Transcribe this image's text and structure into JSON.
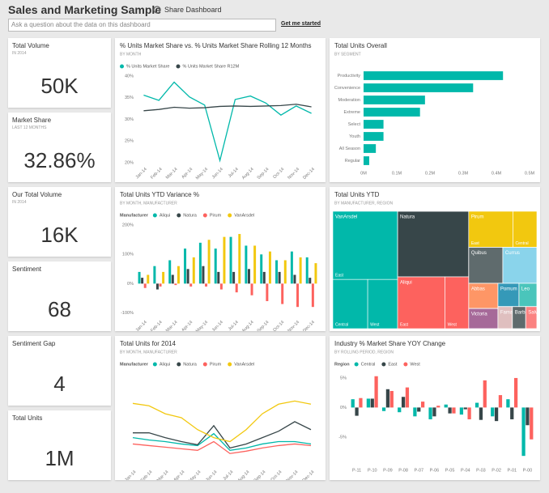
{
  "header": {
    "title": "Sales and Marketing Sample",
    "share": "Share Dashboard",
    "question_placeholder": "Ask a question about the data on this dashboard",
    "get_started": "Get me started"
  },
  "cards": [
    {
      "title": "Total Volume",
      "subtitle": "IN 2014",
      "value": "50K"
    },
    {
      "title": "Market Share",
      "subtitle": "LAST 12 MONTHS",
      "value": "32.86%"
    },
    {
      "title": "Our Total Volume",
      "subtitle": "IN 2014",
      "value": "16K"
    },
    {
      "title": "Sentiment",
      "value": "68"
    },
    {
      "title": "Sentiment Gap",
      "value": "4"
    },
    {
      "title": "Total Units",
      "value": "1M"
    }
  ],
  "chart_data": [
    {
      "type": "line",
      "title": "% Units Market Share vs. % Units Market Share Rolling 12 Months",
      "subtitle": "BY MONTH",
      "categories": [
        "Jan-14",
        "Feb-14",
        "Mar-14",
        "Apr-14",
        "May-14",
        "Jun-14",
        "Jul-14",
        "Aug-14",
        "Sep-14",
        "Oct-14",
        "Nov-14",
        "Dec-14"
      ],
      "series": [
        {
          "name": "% Units Market Share",
          "color": "#01b8aa",
          "values": [
            35.6,
            34.4,
            38.6,
            35.2,
            33.3,
            20.5,
            34.6,
            35.4,
            33.8,
            31.0,
            33.1,
            31.4
          ]
        },
        {
          "name": "% Units Market Share R12M",
          "color": "#374649",
          "values": [
            32.0,
            32.3,
            32.8,
            32.6,
            32.7,
            33.0,
            33.1,
            33.0,
            33.1,
            33.2,
            33.5,
            32.9
          ]
        }
      ],
      "ylim": [
        20,
        40
      ],
      "yticks": [
        {
          "value": 20,
          "label": "20%"
        },
        {
          "value": 25,
          "label": "25%"
        },
        {
          "value": 30,
          "label": "30%"
        },
        {
          "value": 35,
          "label": "35%"
        },
        {
          "value": 40,
          "label": "40%"
        }
      ],
      "grid": false
    },
    {
      "type": "bar",
      "horizontal": true,
      "title": "Total Units Overall",
      "subtitle": "BY SEGMENT",
      "categories": [
        "Productivity",
        "Convenience",
        "Moderation",
        "Extreme",
        "Select",
        "Youth",
        "All Season",
        "Regular"
      ],
      "values": [
        420000,
        330000,
        185000,
        170000,
        60000,
        60000,
        37000,
        17000
      ],
      "color": "#01b8aa",
      "xlim": [
        0,
        500000
      ],
      "xticks": [
        {
          "value": 0,
          "label": "0M"
        },
        {
          "value": 100000,
          "label": "0.1M"
        },
        {
          "value": 200000,
          "label": "0.2M"
        },
        {
          "value": 300000,
          "label": "0.3M"
        },
        {
          "value": 400000,
          "label": "0.4M"
        },
        {
          "value": 500000,
          "label": "0.5M"
        }
      ],
      "grid": false
    },
    {
      "type": "bar",
      "title": "Total Units YTD Variance %",
      "subtitle": "BY MONTH, MANUFACTURER",
      "legend_title": "Manufacturer",
      "categories": [
        "Jan-14",
        "Feb-14",
        "Mar-14",
        "Apr-14",
        "May-14",
        "Jun-14",
        "Jul-14",
        "Aug-14",
        "Sep-14",
        "Oct-14",
        "Nov-14",
        "Dec-14"
      ],
      "series": [
        {
          "name": "Aliqui",
          "color": "#01b8aa",
          "values": [
            40,
            60,
            80,
            120,
            140,
            120,
            160,
            130,
            100,
            80,
            110,
            90
          ]
        },
        {
          "name": "Natura",
          "color": "#374649",
          "values": [
            20,
            -20,
            30,
            50,
            60,
            40,
            40,
            50,
            40,
            40,
            30,
            20
          ]
        },
        {
          "name": "Pirum",
          "color": "#fd625e",
          "values": [
            -15,
            -10,
            -5,
            -10,
            -10,
            -20,
            -30,
            -40,
            -60,
            -70,
            -80,
            -80
          ]
        },
        {
          "name": "VanArsdel",
          "color": "#f2c80f",
          "values": [
            30,
            40,
            60,
            90,
            150,
            160,
            170,
            130,
            110,
            80,
            90,
            70
          ]
        }
      ],
      "ylim": [
        -110,
        220
      ],
      "yticks": [
        {
          "value": -100,
          "label": "-100%"
        },
        {
          "value": 0,
          "label": "0%"
        },
        {
          "value": 100,
          "label": "100%"
        },
        {
          "value": 200,
          "label": "200%"
        }
      ],
      "grid": false
    },
    {
      "type": "treemap",
      "title": "Total Units YTD",
      "subtitle": "BY MANUFACTURER, REGION",
      "items": [
        {
          "name": "VanArsdel",
          "color": "#01b8aa",
          "regions": [
            {
              "name": "East",
              "value": 180000
            },
            {
              "name": "Central",
              "value": 70000
            },
            {
              "name": "West",
              "value": 60000
            }
          ]
        },
        {
          "name": "Natura",
          "color": "#374649",
          "value": 190000
        },
        {
          "name": "Aliqui",
          "color": "#fd625e",
          "regions": [
            {
              "name": "East",
              "value": 100000
            },
            {
              "name": "West",
              "value": 50000
            }
          ]
        },
        {
          "name": "Pirum",
          "color": "#f2c80f",
          "regions": [
            {
              "name": "East",
              "value": 65000
            },
            {
              "name": "Central",
              "value": 35000
            }
          ]
        },
        {
          "name": "Quibus",
          "color": "#5f6b6d",
          "value": 50000
        },
        {
          "name": "Currus",
          "color": "#8ad4eb",
          "value": 50000
        },
        {
          "name": "Abbas",
          "color": "#fe9666",
          "value": 30000
        },
        {
          "name": "Victoria",
          "color": "#a66999",
          "value": 24000
        },
        {
          "name": "Pomum",
          "color": "#3599b8",
          "value": 20000
        },
        {
          "name": "Leo",
          "color": "#4ac5bb",
          "value": 17000
        },
        {
          "name": "Fama",
          "color": "#dfbfbf",
          "value": 13000
        },
        {
          "name": "Barba",
          "color": "#5f6b6d",
          "value": 12000
        },
        {
          "name": "Salvus",
          "color": "#fb8281",
          "value": 10000
        }
      ]
    },
    {
      "type": "line",
      "title": "Total Units for 2014",
      "subtitle": "BY MONTH, MANUFACTURER",
      "legend_title": "Manufacturer",
      "categories": [
        "Jan-14",
        "Feb-14",
        "Mar-14",
        "Apr-14",
        "May-14",
        "Jun-14",
        "Jul-14",
        "Aug-14",
        "Sep-14",
        "Oct-14",
        "Nov-14",
        "Dec-14"
      ],
      "series": [
        {
          "name": "Aliqui",
          "color": "#01b8aa",
          "values": [
            35,
            32,
            30,
            27,
            25,
            40,
            19,
            22,
            27,
            30,
            30,
            27
          ]
        },
        {
          "name": "Natura",
          "color": "#374649",
          "values": [
            41,
            41,
            35,
            30,
            26,
            50,
            22,
            27,
            35,
            43,
            55,
            45
          ]
        },
        {
          "name": "Pirum",
          "color": "#fd625e",
          "values": [
            27,
            25,
            23,
            21,
            19,
            30,
            15,
            18,
            22,
            25,
            27,
            25
          ]
        },
        {
          "name": "VanArsdel",
          "color": "#f2c80f",
          "values": [
            78,
            75,
            65,
            60,
            45,
            35,
            30,
            45,
            65,
            77,
            81,
            77
          ]
        }
      ],
      "ylim": [
        0,
        120
      ],
      "grid": false
    },
    {
      "type": "bar",
      "title": "Industry % Market Share YOY Change",
      "subtitle": "BY ROLLING PERIOD, REGION",
      "legend_title": "Region",
      "categories": [
        "P-11",
        "P-10",
        "P-09",
        "P-08",
        "P-07",
        "P-06",
        "P-05",
        "P-04",
        "P-03",
        "P-02",
        "P-01",
        "P-00"
      ],
      "series": [
        {
          "name": "Central",
          "color": "#01b8aa",
          "values": [
            1.4,
            1.5,
            -0.6,
            -0.8,
            -1.5,
            -2.0,
            0.5,
            -1.2,
            0.8,
            -1.5,
            1.4,
            -8.2
          ]
        },
        {
          "name": "East",
          "color": "#374649",
          "values": [
            -1.4,
            1.5,
            3.1,
            1.8,
            -0.7,
            -1.5,
            -1.0,
            -0.3,
            -2.1,
            -2.3,
            -2.0,
            -3.0
          ]
        },
        {
          "name": "West",
          "color": "#fd625e",
          "values": [
            1.6,
            5.3,
            2.8,
            3.4,
            1.0,
            0.3,
            -1.0,
            -2.0,
            4.6,
            2.1,
            5.0,
            -5.4
          ]
        }
      ],
      "ylim": [
        -9,
        6.5
      ],
      "yticks": [
        {
          "value": -5,
          "label": "-5%"
        },
        {
          "value": 0,
          "label": "0%"
        },
        {
          "value": 5,
          "label": "5%"
        }
      ],
      "grid": false
    }
  ]
}
